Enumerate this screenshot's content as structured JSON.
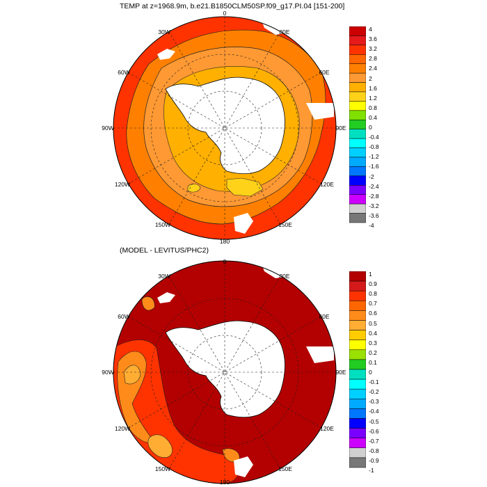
{
  "top_panel": {
    "title": "TEMP at z=1968.9m, b.e21.B1850CLM50SP.f09_g17.PI.04 [151-200]",
    "longitude_labels": {
      "0": "0",
      "30E": "30E",
      "60E": "60E",
      "90E": "90E",
      "120E": "120E",
      "150E": "150E",
      "180": "180",
      "150W": "150W",
      "120W": "120W",
      "90W": "90W",
      "60W": "60W",
      "30W": "30W"
    },
    "colorbar": {
      "labels": [
        "4",
        "3.6",
        "3.2",
        "2.8",
        "2.4",
        "2",
        "1.6",
        "1.2",
        "0.8",
        "0.4",
        "0",
        "-0.4",
        "-0.8",
        "-1.2",
        "-1.6",
        "-2",
        "-2.4",
        "-2.8",
        "-3.2",
        "-3.6",
        "-4"
      ],
      "colors": [
        "#cc0000",
        "#e61a1a",
        "#ff3300",
        "#ff6600",
        "#ff8000",
        "#ff9933",
        "#ffb000",
        "#ffd21a",
        "#ffff00",
        "#80e000",
        "#22cc22",
        "#00e0c0",
        "#00ffff",
        "#00d0ff",
        "#00aaff",
        "#0077ff",
        "#0000ff",
        "#7a00ff",
        "#cc00ff",
        "#d0d0d0",
        "#777777"
      ]
    }
  },
  "bottom_panel": {
    "title": "(MODEL - LEVITUS/PHC2)",
    "longitude_labels": {
      "0": "0",
      "30E": "30E",
      "60E": "60E",
      "90E": "90E",
      "120E": "120E",
      "150E": "150E",
      "180": "180",
      "150W": "150W",
      "120W": "120W",
      "90W": "90W",
      "60W": "60W",
      "30W": "30W"
    },
    "colorbar": {
      "labels": [
        "1",
        "0.9",
        "0.8",
        "0.7",
        "0.6",
        "0.5",
        "0.4",
        "0.3",
        "0.2",
        "0.1",
        "0",
        "-0.1",
        "-0.2",
        "-0.3",
        "-0.4",
        "-0.5",
        "-0.6",
        "-0.7",
        "-0.8",
        "-0.9",
        "-1"
      ],
      "colors": [
        "#b30000",
        "#d41a1a",
        "#ff3300",
        "#ff6600",
        "#ff8c1a",
        "#ffad33",
        "#ffcc00",
        "#ffff00",
        "#9ae000",
        "#22cc22",
        "#00e0c0",
        "#00ffff",
        "#00d0ff",
        "#00aaff",
        "#0077ff",
        "#0000ff",
        "#7a00ff",
        "#cc00ff",
        "#d0d0d0",
        "#777777"
      ]
    }
  }
}
